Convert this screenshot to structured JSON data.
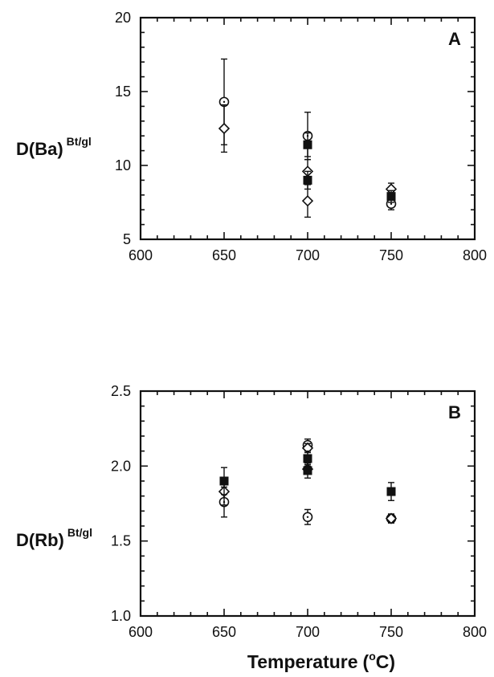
{
  "chart_data": [
    {
      "type": "scatter",
      "panel_label": "A",
      "ylabel": "D(Ba)",
      "ylabel_superscript": "Bt/gl",
      "xlabel": "",
      "xlim": [
        600,
        800
      ],
      "ylim": [
        5,
        20
      ],
      "x_ticks": [
        "600",
        "650",
        "700",
        "750",
        "800"
      ],
      "y_ticks": [
        "5",
        "10",
        "15",
        "20"
      ],
      "grid": false,
      "series": [
        {
          "marker": "open-circle",
          "points": [
            {
              "x": 650,
              "y": 14.3,
              "err_low": 11.4,
              "err_high": 17.2
            },
            {
              "x": 700,
              "y": 12.0,
              "err_low": 10.4,
              "err_high": 13.6
            },
            {
              "x": 750,
              "y": 7.4,
              "err_low": 7.0,
              "err_high": 7.8
            }
          ]
        },
        {
          "marker": "open-diamond",
          "points": [
            {
              "x": 650,
              "y": 12.5,
              "err_low": 10.9,
              "err_high": 14.1
            },
            {
              "x": 700,
              "y": 9.6,
              "err_low": 8.8,
              "err_high": 10.4
            },
            {
              "x": 700,
              "y": 7.6,
              "err_low": 6.5,
              "err_high": 8.7
            },
            {
              "x": 750,
              "y": 8.4,
              "err_low": 8.0,
              "err_high": 8.8
            }
          ]
        },
        {
          "marker": "filled-square",
          "points": [
            {
              "x": 700,
              "y": 11.4,
              "err_low": 10.6,
              "err_high": 12.2
            },
            {
              "x": 700,
              "y": 9.0,
              "err_low": 8.4,
              "err_high": 9.6
            },
            {
              "x": 750,
              "y": 7.9,
              "err_low": 7.5,
              "err_high": 8.3
            }
          ]
        }
      ]
    },
    {
      "type": "scatter",
      "panel_label": "B",
      "ylabel": "D(Rb)",
      "ylabel_superscript": "Bt/gl",
      "xlabel": "Temperature",
      "xlabel_unit": "(oC)",
      "xlim": [
        600,
        800
      ],
      "ylim": [
        1.0,
        2.5
      ],
      "x_ticks": [
        "600",
        "650",
        "700",
        "750",
        "800"
      ],
      "y_ticks": [
        "1.0",
        "1.5",
        "2.0",
        "2.5"
      ],
      "grid": false,
      "series": [
        {
          "marker": "open-circle",
          "points": [
            {
              "x": 650,
              "y": 1.76,
              "err_low": 1.66,
              "err_high": 1.86
            },
            {
              "x": 700,
              "y": 2.14,
              "err_low": 2.1,
              "err_high": 2.18
            },
            {
              "x": 700,
              "y": 1.66,
              "err_low": 1.61,
              "err_high": 1.71
            },
            {
              "x": 750,
              "y": 1.65,
              "err_low": 1.62,
              "err_high": 1.68
            }
          ]
        },
        {
          "marker": "open-diamond",
          "points": [
            {
              "x": 650,
              "y": 1.83,
              "err_low": 1.74,
              "err_high": 1.92
            },
            {
              "x": 700,
              "y": 2.12,
              "err_low": 2.09,
              "err_high": 2.15
            },
            {
              "x": 700,
              "y": 1.98,
              "err_low": 1.95,
              "err_high": 2.01
            },
            {
              "x": 750,
              "y": 1.65,
              "err_low": 1.62,
              "err_high": 1.68
            }
          ]
        },
        {
          "marker": "filled-square",
          "points": [
            {
              "x": 650,
              "y": 1.9,
              "err_low": 1.81,
              "err_high": 1.99
            },
            {
              "x": 700,
              "y": 2.05,
              "err_low": 2.0,
              "err_high": 2.1
            },
            {
              "x": 700,
              "y": 1.97,
              "err_low": 1.92,
              "err_high": 2.02
            },
            {
              "x": 750,
              "y": 1.83,
              "err_low": 1.77,
              "err_high": 1.89
            }
          ]
        }
      ]
    }
  ]
}
